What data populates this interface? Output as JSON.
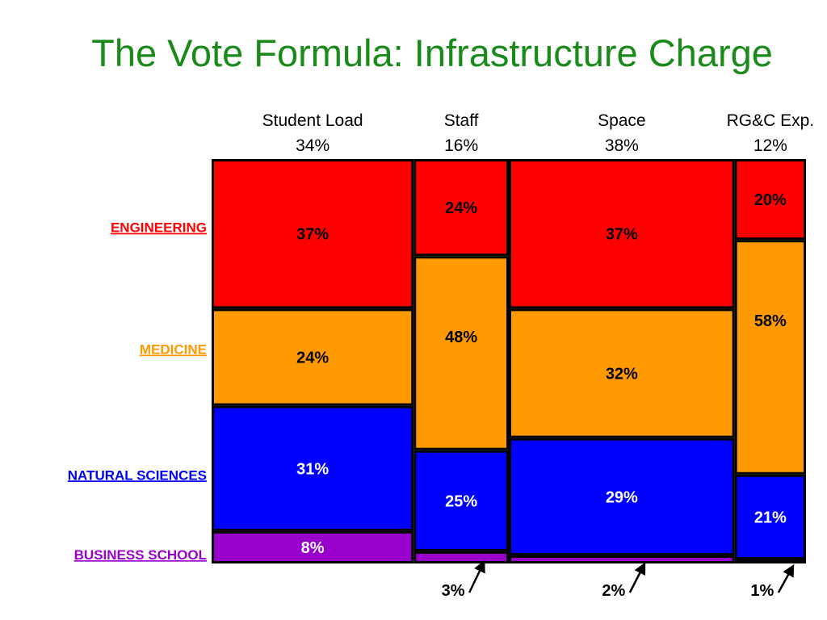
{
  "slide": {
    "title": "The Vote Formula: Infrastructure Charge"
  },
  "chart_data": {
    "type": "bar",
    "subtype": "stacked-100-mosaic",
    "title": "The Vote Formula: Infrastructure Charge",
    "categories": [
      "Student Load",
      "Staff",
      "Space",
      "RG&C Exp."
    ],
    "category_weights": [
      34,
      16,
      38,
      12
    ],
    "category_weight_labels": [
      "34%",
      "16%",
      "38%",
      "12%"
    ],
    "series": [
      {
        "name": "ENGINEERING",
        "values": [
          37,
          24,
          37,
          20
        ],
        "labels": [
          "37%",
          "24%",
          "37%",
          "20%"
        ]
      },
      {
        "name": "MEDICINE",
        "values": [
          24,
          48,
          32,
          58
        ],
        "labels": [
          "24%",
          "48%",
          "32%",
          "58%"
        ]
      },
      {
        "name": "NATURAL SCIENCES",
        "values": [
          31,
          25,
          29,
          21
        ],
        "labels": [
          "31%",
          "25%",
          "29%",
          "21%"
        ]
      },
      {
        "name": "BUSINESS SCHOOL",
        "values": [
          8,
          3,
          2,
          1
        ],
        "labels": [
          "8%",
          "",
          "",
          ""
        ]
      }
    ],
    "callouts": [
      {
        "label": "3%",
        "category": "Staff"
      },
      {
        "label": "2%",
        "category": "Space"
      },
      {
        "label": "1%",
        "category": "RG&C Exp."
      }
    ],
    "ylim": [
      0,
      100
    ],
    "grid": false,
    "legend": "left",
    "colors": {
      "ENGINEERING": "#ff0000",
      "MEDICINE": "#ff9900",
      "NATURAL SCIENCES": "#0000ff",
      "BUSINESS SCHOOL": "#9900cc",
      "segment_label": "#000000",
      "segment_label_on_dark": "#ffffff",
      "title": "#1a8a1a"
    }
  }
}
